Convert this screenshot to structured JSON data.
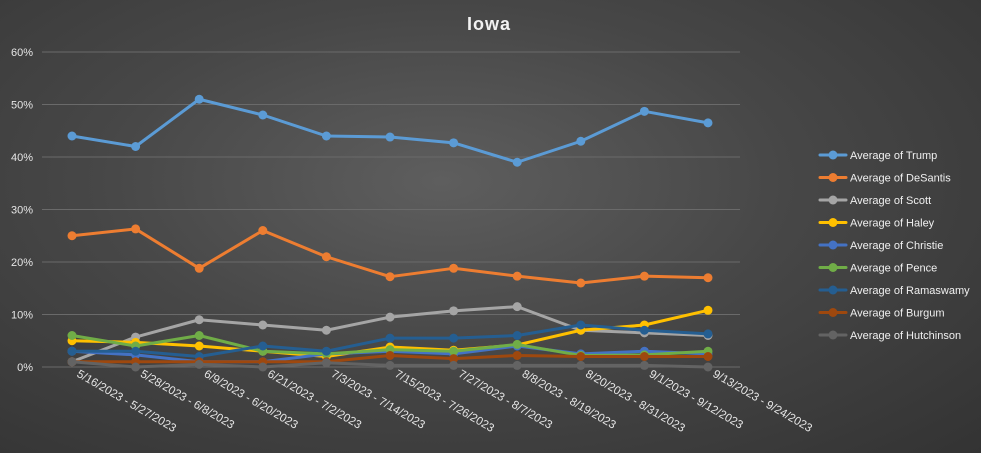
{
  "chart_data": {
    "type": "line",
    "title": "Iowa",
    "xlabel": "",
    "ylabel": "",
    "ylim": [
      0,
      60
    ],
    "y_ticks": [
      "0%",
      "10%",
      "20%",
      "30%",
      "40%",
      "50%",
      "60%"
    ],
    "grid": true,
    "legend_position": "right",
    "categories": [
      "5/16/2023 - 5/27/2023",
      "5/28/2023 - 6/8/2023",
      "6/9/2023 - 6/20/2023",
      "6/21/2023 - 7/2/2023",
      "7/3/2023 - 7/14/2023",
      "7/15/2023 - 7/26/2023",
      "7/27/2023 - 8/7/2023",
      "8/8/2023 - 8/19/2023",
      "8/20/2023 - 8/31/2023",
      "9/1/2023 - 9/12/2023",
      "9/13/2023 - 9/24/2023"
    ],
    "series": [
      {
        "name": "Average of Trump",
        "color": "#5b9bd5",
        "values": [
          44,
          42,
          51,
          48,
          44,
          43.8,
          42.7,
          39,
          43,
          48.7,
          46.5
        ]
      },
      {
        "name": "Average of DeSantis",
        "color": "#ed7d31",
        "values": [
          25,
          26.3,
          18.8,
          26,
          21,
          17.2,
          18.8,
          17.3,
          16,
          17.3,
          17
        ]
      },
      {
        "name": "Average of Scott",
        "color": "#a5a5a5",
        "values": [
          1,
          5.7,
          9,
          8,
          7,
          9.5,
          10.7,
          11.5,
          7,
          6.5,
          6
        ]
      },
      {
        "name": "Average of Haley",
        "color": "#ffc000",
        "values": [
          5,
          4.7,
          4,
          3,
          2,
          3.8,
          3.2,
          4.2,
          7,
          8,
          10.8
        ]
      },
      {
        "name": "Average of Christie",
        "color": "#4472c4",
        "values": [
          3,
          2.3,
          1,
          1,
          2.5,
          3,
          2.5,
          4,
          2.5,
          3,
          2.5
        ]
      },
      {
        "name": "Average of Pence",
        "color": "#70ad47",
        "values": [
          6,
          4,
          6,
          3,
          2.5,
          3.3,
          3,
          4.3,
          2.2,
          2.3,
          3
        ]
      },
      {
        "name": "Average of Ramaswamy",
        "color": "#255e91",
        "values": [
          3,
          3,
          2,
          4,
          3,
          5.5,
          5.5,
          6,
          8,
          7,
          6.3
        ]
      },
      {
        "name": "Average of Burgum",
        "color": "#9e480e",
        "values": [
          1,
          1,
          1,
          1,
          1,
          2.2,
          1.6,
          2.2,
          2,
          2,
          2
        ]
      },
      {
        "name": "Average of Hutchinson",
        "color": "#636363",
        "values": [
          1,
          0,
          0.5,
          0,
          0.8,
          0.3,
          0.3,
          0.3,
          0.3,
          0.3,
          0
        ]
      }
    ]
  }
}
